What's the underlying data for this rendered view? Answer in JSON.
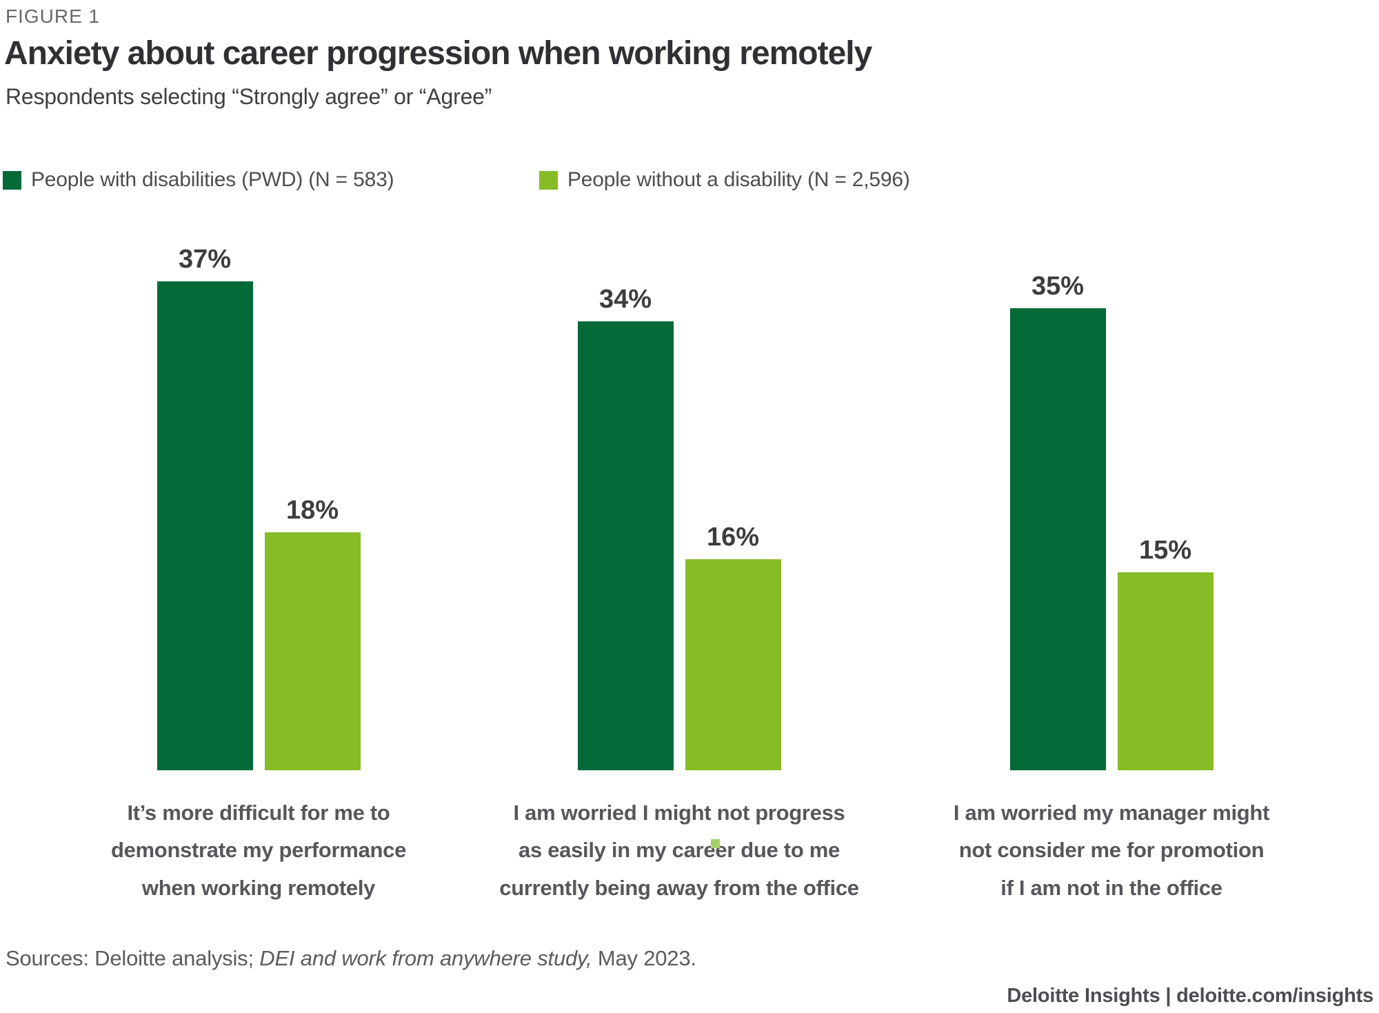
{
  "figure_label": "FIGURE 1",
  "title": "Anxiety about career progression when working remotely",
  "subtitle": "Respondents selecting “Strongly agree” or “Agree”",
  "legend": [
    {
      "label": "People with disabilities (PWD) (N = 583)",
      "color": "#046A38"
    },
    {
      "label": "People without a disability (N = 2,596)",
      "color": "#86BC25"
    }
  ],
  "chart_data": {
    "type": "bar",
    "title": "Anxiety about career progression when working remotely",
    "subtitle": "Respondents selecting “Strongly agree” or “Agree”",
    "categories": [
      "It’s more difficult for me to demonstrate my performance when working remotely",
      "I am worried I might not progress as easily in my career due to me currently being away from the office",
      "I am worried my manager might not consider me for promotion if I am not in the office"
    ],
    "categories_display": [
      "It’s more difficult for me to\ndemonstrate my performance\nwhen working remotely",
      "I am worried I might not progress\nas easily in my career due to me\ncurrently being away from the office",
      "I am worried my manager might\nnot consider me for promotion\nif I am not in the office"
    ],
    "series": [
      {
        "name": "People with disabilities (PWD) (N = 583)",
        "color": "#046A38",
        "values": [
          37,
          34,
          35
        ]
      },
      {
        "name": "People without a disability (N = 2,596)",
        "color": "#86BC25",
        "values": [
          18,
          16,
          15
        ]
      }
    ],
    "value_suffix": "%",
    "value_labels": true,
    "ylim": [
      0,
      40
    ],
    "grid": false,
    "axes_visible": false,
    "legend_position": "top"
  },
  "decorations": {
    "stray_green_dot_color": "#a9cf6b"
  },
  "source_note": {
    "prefix": "Sources: Deloitte analysis; ",
    "italic": "DEI and work from anywhere study,",
    "suffix": " May 2023."
  },
  "footer": "Deloitte Insights | deloitte.com/insights"
}
